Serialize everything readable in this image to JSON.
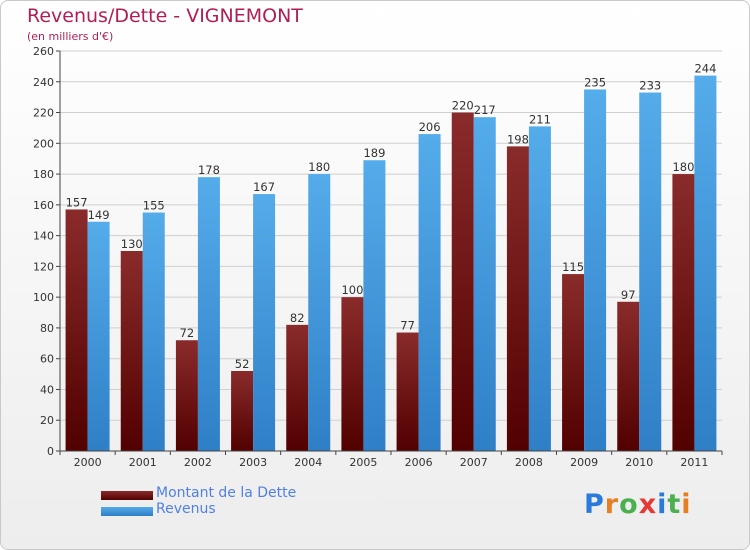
{
  "header": {
    "title": "Revenus/Dette - VIGNEMONT",
    "subtitle": "(en milliers d'€)"
  },
  "legend": [
    {
      "label": "Montant de la Dette",
      "color": "#7a1a1a"
    },
    {
      "label": "Revenus",
      "color": "#4aa3e6"
    }
  ],
  "logo": {
    "letters": [
      "P",
      "r",
      "o",
      "x",
      "i",
      "t",
      "i"
    ],
    "colors": [
      "#2a7ad9",
      "#e67e22",
      "#4caf50",
      "#e53935",
      "#2a7ad9",
      "#4caf50",
      "#e67e22"
    ]
  },
  "chart_data": {
    "type": "bar",
    "categories": [
      "2000",
      "2001",
      "2002",
      "2003",
      "2004",
      "2005",
      "2006",
      "2007",
      "2008",
      "2009",
      "2010",
      "2011"
    ],
    "series": [
      {
        "name": "Montant de la Dette",
        "color": "#7a1a1a",
        "values": [
          157,
          130,
          72,
          52,
          82,
          100,
          77,
          220,
          198,
          115,
          97,
          180
        ]
      },
      {
        "name": "Revenus",
        "color": "#4aa3e6",
        "values": [
          149,
          155,
          178,
          167,
          180,
          189,
          206,
          217,
          211,
          235,
          233,
          244
        ]
      }
    ],
    "ylim": [
      0,
      260
    ],
    "yticks": [
      0,
      20,
      40,
      60,
      80,
      100,
      120,
      140,
      160,
      180,
      200,
      220,
      240,
      260
    ],
    "grid": true,
    "title": "Revenus/Dette - VIGNEMONT",
    "ylabel": "(en milliers d'€)",
    "xlabel": ""
  }
}
